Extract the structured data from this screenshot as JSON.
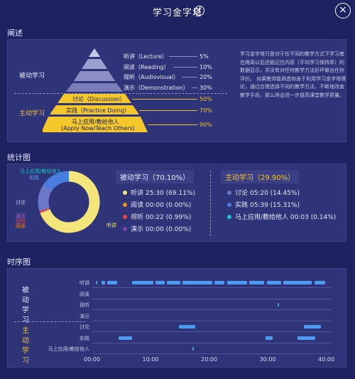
{
  "window": {
    "title": "学习金字塔"
  },
  "sections": {
    "desc": "阐述",
    "stats": "统计图",
    "timeline": "时序图"
  },
  "pyramid": {
    "passive_label": "被动学习",
    "active_label": "主动学习",
    "levels": [
      {
        "label": "听讲（Lecture）",
        "pct": "5%"
      },
      {
        "label": "阅读（Reading）",
        "pct": "10%"
      },
      {
        "label": "视听（Audiovisual）",
        "pct": "20%"
      },
      {
        "label": "演示（Demonstration）",
        "pct": "30%"
      },
      {
        "label": "讨论（Discussion）",
        "pct": "50%"
      },
      {
        "label": "实践（Practice Doing）",
        "pct": "70%"
      },
      {
        "label": "马上应用/教给他人",
        "label2": "(Apply Now/Teach Others)",
        "pct": "90%"
      }
    ],
    "description": "学习金字塔只是对于在不同的教学方式下学习者在两周以后还能记住内容（平均学习保持率）的数据显示，并没有对任何教学方法好坏做出任何评价。 如果教师能熟悉和善于利用学习金字塔理论，通过合理选择不同的教学方法，不断地改善教学手段，那么将会进一步提高课堂教学质量。"
  },
  "stats": {
    "passive": {
      "title": "被动学习（70.10%）",
      "items": [
        "听讲 25:30 (69.11%)",
        "阅读 00:00 (0.00%)",
        "视听 00:22 (0.99%)",
        "演示 00:00 (0.00%)"
      ]
    },
    "active": {
      "title": "主动学习（29.90%）",
      "items": [
        "讨论 05:20 (14.45%)",
        "实践 05:39 (15.31%)",
        "马上应用/教给他人 00:03 (0.14%)"
      ]
    },
    "donut_labels": {
      "teach": "马上应用/教给他人",
      "practice": "实践",
      "discuss": "讨论",
      "demo": "演示",
      "audio": "视听",
      "read": "阅读",
      "lecture": "听讲"
    }
  },
  "chart_data": {
    "type": "pie",
    "categories": [
      "听讲",
      "阅读",
      "视听",
      "演示",
      "讨论",
      "实践",
      "马上应用/教给他人"
    ],
    "values": [
      69.11,
      0.0,
      0.99,
      0.0,
      14.45,
      15.31,
      0.14
    ],
    "colors": [
      "#f3e57a",
      "#f08a24",
      "#e8434b",
      "#7a3fb0",
      "#6b77c7",
      "#4a7de0",
      "#17c3c6"
    ]
  },
  "timeline": {
    "passive_group": "被动学习",
    "active_group": "主动学习",
    "rows": [
      "听讲",
      "阅读",
      "视听",
      "演示",
      "讨论",
      "实践",
      "马上应用/教给他人"
    ],
    "ticks": [
      "00:00",
      "10:00",
      "20:00",
      "30:00",
      "40:00"
    ],
    "max_minutes": 40,
    "segments": [
      [
        [
          0.6,
          0.9
        ],
        [
          1.6,
          2.2
        ],
        [
          2.5,
          4.2
        ],
        [
          6.8,
          10.4
        ],
        [
          10.8,
          12.4
        ],
        [
          12.7,
          15.0
        ],
        [
          15.4,
          20.5
        ],
        [
          20.8,
          22.6
        ],
        [
          23.0,
          26.4
        ],
        [
          26.8,
          29.3
        ],
        [
          29.8,
          32.2
        ],
        [
          32.6,
          37.5
        ],
        [
          37.9,
          39.8
        ]
      ],
      [],
      [
        [
          31.6,
          31.9
        ]
      ],
      [],
      [
        [
          14.8,
          17.6
        ],
        [
          36.1,
          39.0
        ]
      ],
      [
        [
          4.5,
          6.8
        ],
        [
          29.6,
          30.8
        ],
        [
          35.0,
          38.0
        ]
      ],
      [
        [
          17.1,
          17.2
        ]
      ]
    ]
  }
}
